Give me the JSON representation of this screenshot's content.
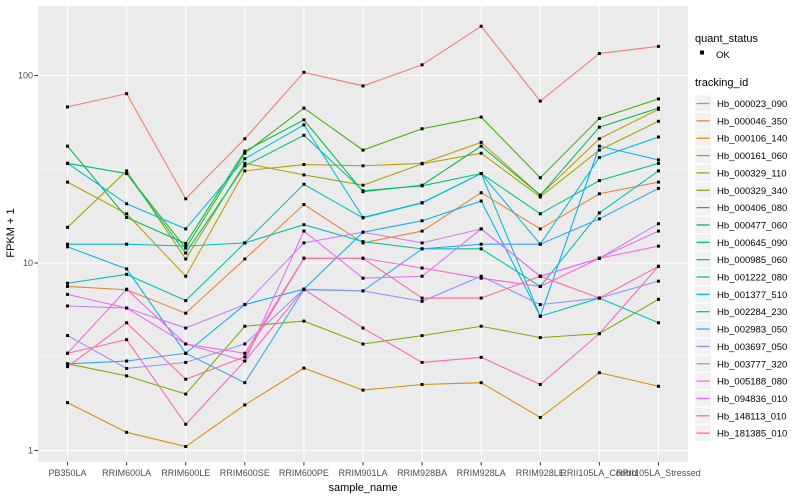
{
  "figure": {
    "y_axis": {
      "title": "FPKM + 1",
      "tick_labels": [
        "1",
        "10",
        "100"
      ]
    },
    "x_axis": {
      "title": "sample_name"
    },
    "legend": {
      "quant_status": {
        "title": "quant_status",
        "items": [
          {
            "label": "OK",
            "marker": "black-point"
          }
        ]
      },
      "tracking_id": {
        "title": "tracking_id"
      }
    },
    "colors": {
      "panel_bg": "#EBEBEB",
      "grid_major": "#FFFFFF",
      "grid_minor": "#FFFFFF",
      "tick_mark": "#333333",
      "tick_text": "#4D4D4D",
      "point": "#000000",
      "legend_key_bg": "#F2F2F2"
    }
  },
  "chart_data": {
    "type": "line",
    "title": "",
    "xlabel": "sample_name",
    "ylabel": "FPKM + 1",
    "scale_y": "log10",
    "ylim": [
      1,
      228
    ],
    "yticks": [
      1,
      10,
      100
    ],
    "y_minor_gridlines": [
      3.162,
      31.62
    ],
    "grid": true,
    "legend_position": "right",
    "point_marker": "small black square",
    "quant_status": "OK",
    "categories": [
      "PB350LA",
      "RRIM600LA",
      "RRIM600LE",
      "RRIM600SE",
      "RRIM600PE",
      "RRIM901LA",
      "RRIM928BA",
      "RRIM928LA",
      "RRIM928LE",
      "RRII105LA_Control",
      "RRII105LA_Stressed"
    ],
    "series": [
      {
        "name": "Hb_000023_090",
        "color": "#F8766D",
        "values": [
          68,
          80,
          22,
          46,
          104,
          88,
          114,
          183,
          73,
          131,
          143
        ]
      },
      {
        "name": "Hb_000046_350",
        "color": "#EA8331",
        "values": [
          7.5,
          7.2,
          5.4,
          10.5,
          20.5,
          12.8,
          14.8,
          23.7,
          15.2,
          23.4,
          27
        ]
      },
      {
        "name": "Hb_000106_140",
        "color": "#D89000",
        "values": [
          1.8,
          1.25,
          1.05,
          1.75,
          2.75,
          2.1,
          2.25,
          2.3,
          1.5,
          2.6,
          2.2
        ]
      },
      {
        "name": "Hb_000161_060",
        "color": "#C09B00",
        "values": [
          27,
          18.3,
          8.5,
          31,
          33.5,
          33,
          34,
          44,
          23,
          46,
          66
        ]
      },
      {
        "name": "Hb_000329_110",
        "color": "#A3A500",
        "values": [
          15.5,
          31,
          10.5,
          34,
          29.5,
          26,
          33.8,
          38.5,
          22.5,
          40,
          57
        ]
      },
      {
        "name": "Hb_000329_340",
        "color": "#7CAE00",
        "values": [
          2.9,
          2.5,
          2.0,
          4.6,
          4.9,
          3.7,
          4.1,
          4.6,
          4.0,
          4.2,
          6.4
        ]
      },
      {
        "name": "Hb_000406_080",
        "color": "#39B600",
        "values": [
          34,
          30,
          12.0,
          38.5,
          67,
          40,
          52,
          60,
          28.5,
          59,
          75
        ]
      },
      {
        "name": "Hb_000477_060",
        "color": "#00BB4E",
        "values": [
          42,
          17.5,
          12.7,
          39.5,
          58,
          24,
          26,
          42,
          23,
          53,
          67
        ]
      },
      {
        "name": "Hb_000645_090",
        "color": "#00C087",
        "values": [
          34,
          30,
          11.3,
          33,
          48,
          24.3,
          25.8,
          30,
          18.3,
          27.5,
          34
        ]
      },
      {
        "name": "Hb_000985_060",
        "color": "#00C1AB",
        "values": [
          7.8,
          8.7,
          6.3,
          12.8,
          16,
          13,
          11.9,
          11.9,
          7.5,
          18.5,
          31
        ]
      },
      {
        "name": "Hb_001222_080",
        "color": "#00BFC4",
        "values": [
          12.6,
          12.6,
          12.3,
          12.8,
          26.3,
          17.4,
          20.9,
          30,
          5.2,
          6.5,
          4.8
        ]
      },
      {
        "name": "Hb_001377_510",
        "color": "#00BAE0",
        "values": [
          34,
          20.7,
          15.2,
          36,
          54.5,
          17.5,
          21,
          30,
          12.6,
          36.5,
          47
        ]
      },
      {
        "name": "Hb_002284_230",
        "color": "#00B0F6",
        "values": [
          12.2,
          9.3,
          3.3,
          6.0,
          7.25,
          14.6,
          16.8,
          21.4,
          5.2,
          42,
          35.5
        ]
      },
      {
        "name": "Hb_002983_050",
        "color": "#35A2FF",
        "values": [
          2.9,
          3.0,
          3.3,
          2.3,
          7.2,
          7.1,
          11.9,
          12.6,
          12.6,
          17.2,
          25
        ]
      },
      {
        "name": "Hb_003697_050",
        "color": "#9590FF",
        "values": [
          4.1,
          2.74,
          2.95,
          3.7,
          7.25,
          7.1,
          6.25,
          8.5,
          6.0,
          6.5,
          8.0
        ]
      },
      {
        "name": "Hb_003777_320",
        "color": "#C77CFF",
        "values": [
          5.9,
          5.75,
          4.5,
          6.0,
          12.8,
          14.6,
          12.8,
          15.2,
          8.5,
          10.6,
          16.2
        ]
      },
      {
        "name": "Hb_005188_080",
        "color": "#E76BF3",
        "values": [
          6.8,
          5.75,
          3.7,
          3.0,
          14.8,
          8.3,
          8.5,
          15.2,
          8.5,
          10.6,
          14.8
        ]
      },
      {
        "name": "Hb_094836_010",
        "color": "#FA62DB",
        "values": [
          3.3,
          7.25,
          3.7,
          3.3,
          10.6,
          10.6,
          9.4,
          8.3,
          7.5,
          10.6,
          12.3
        ]
      },
      {
        "name": "Hb_148113_010",
        "color": "#FF62BC",
        "values": [
          3.3,
          3.9,
          1.38,
          3.0,
          7.25,
          4.5,
          2.95,
          3.14,
          2.25,
          4.2,
          9.6
        ]
      },
      {
        "name": "Hb_181385_010",
        "color": "#FF6A98",
        "values": [
          2.8,
          4.8,
          2.4,
          3.16,
          10.6,
          10.6,
          6.5,
          6.5,
          8.5,
          6.5,
          9.6
        ]
      }
    ]
  }
}
